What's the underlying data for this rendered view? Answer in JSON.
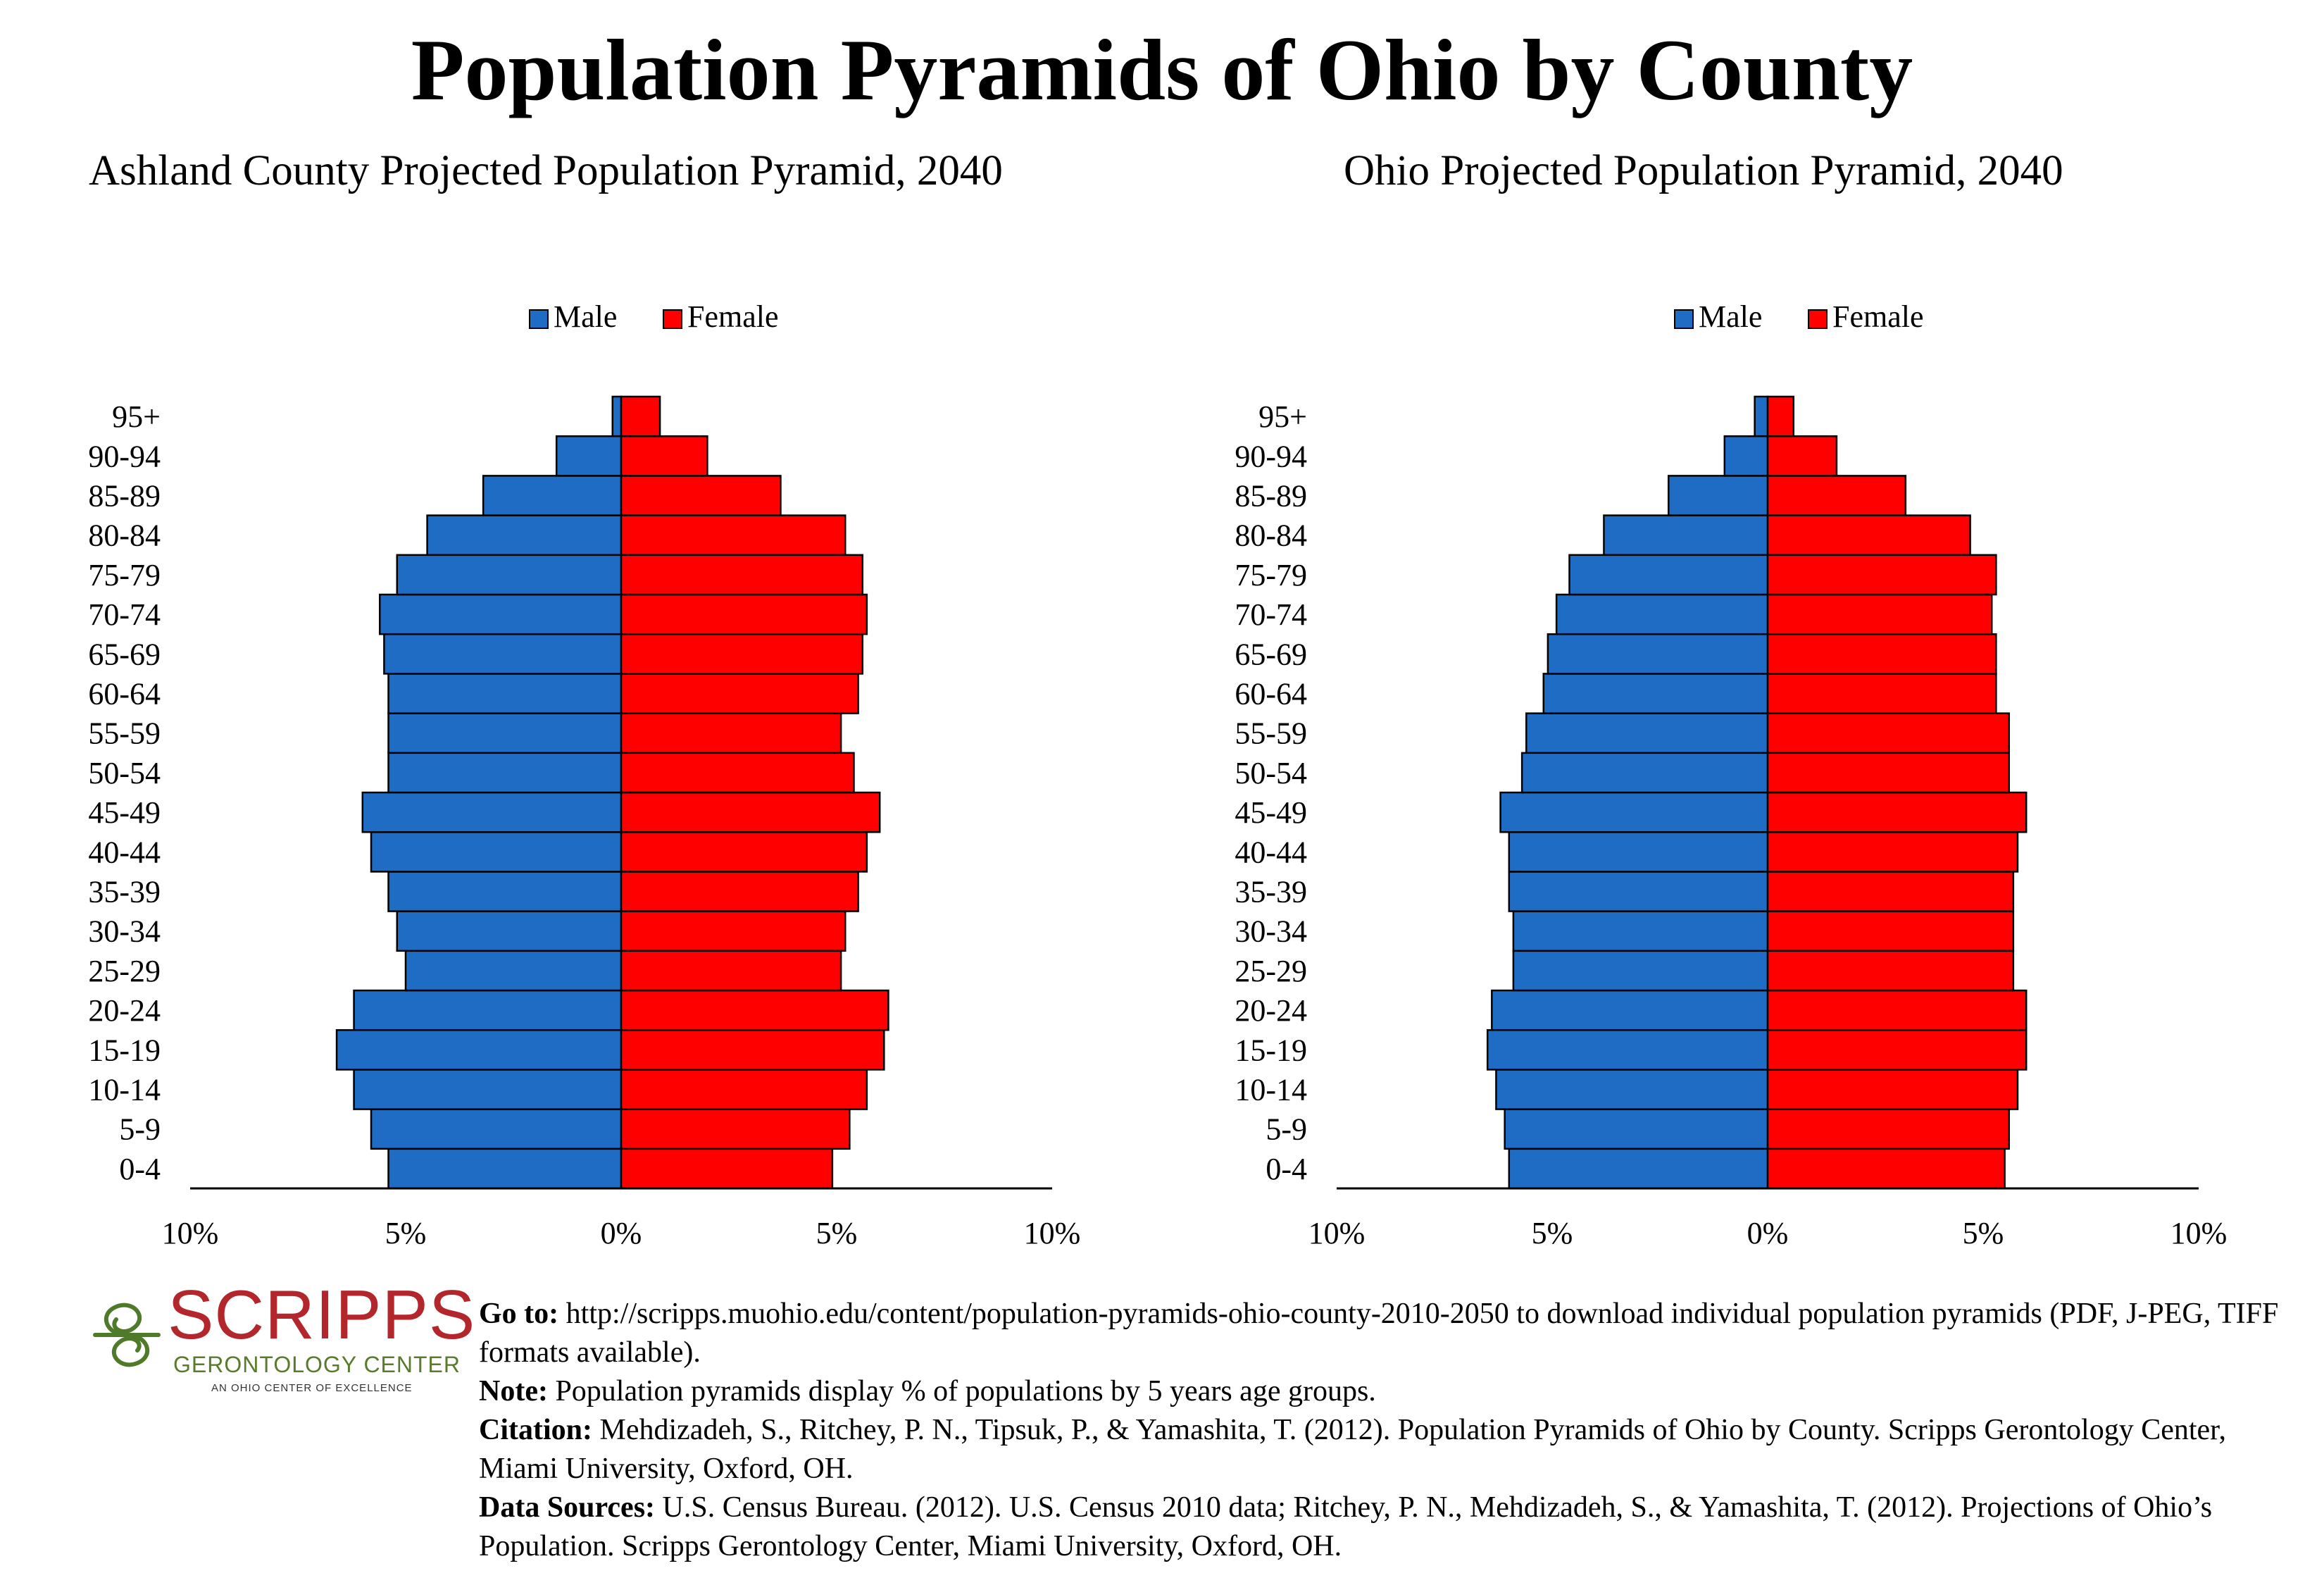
{
  "page": {
    "title": "Population Pyramids of Ohio by County"
  },
  "colors": {
    "male": "#1f6cc4",
    "female": "#ff0000",
    "axis": "#000000"
  },
  "chart_data": [
    {
      "type": "bar",
      "title": "Ashland County Projected Population Pyramid, 2040",
      "orientation": "horizontal-pyramid",
      "legend": [
        "Male",
        "Female"
      ],
      "legend_position": "top",
      "categories": [
        "0-4",
        "5-9",
        "10-14",
        "15-19",
        "20-24",
        "25-29",
        "30-34",
        "35-39",
        "40-44",
        "45-49",
        "50-54",
        "55-59",
        "60-64",
        "65-69",
        "70-74",
        "75-79",
        "80-84",
        "85-89",
        "90-94",
        "95+"
      ],
      "series": [
        {
          "name": "Male",
          "values": [
            5.4,
            5.8,
            6.2,
            6.6,
            6.2,
            5.0,
            5.2,
            5.4,
            5.8,
            6.0,
            5.4,
            5.4,
            5.4,
            5.5,
            5.6,
            5.2,
            4.5,
            3.2,
            1.5,
            0.2
          ]
        },
        {
          "name": "Female",
          "values": [
            4.9,
            5.3,
            5.7,
            6.1,
            6.2,
            5.1,
            5.2,
            5.5,
            5.7,
            6.0,
            5.4,
            5.1,
            5.5,
            5.6,
            5.7,
            5.6,
            5.2,
            3.7,
            2.0,
            0.9
          ]
        }
      ],
      "xlim": [
        -10,
        10
      ],
      "xticks": [
        "10%",
        "5%",
        "0%",
        "5%",
        "10%"
      ],
      "grid": false
    },
    {
      "type": "bar",
      "title": "Ohio Projected Population Pyramid, 2040",
      "orientation": "horizontal-pyramid",
      "legend": [
        "Male",
        "Female"
      ],
      "legend_position": "top",
      "categories": [
        "0-4",
        "5-9",
        "10-14",
        "15-19",
        "20-24",
        "25-29",
        "30-34",
        "35-39",
        "40-44",
        "45-49",
        "50-54",
        "55-59",
        "60-64",
        "65-69",
        "70-74",
        "75-79",
        "80-84",
        "85-89",
        "90-94",
        "95+"
      ],
      "series": [
        {
          "name": "Male",
          "values": [
            6.0,
            6.1,
            6.3,
            6.5,
            6.4,
            5.9,
            5.9,
            6.0,
            6.0,
            6.2,
            5.7,
            5.6,
            5.2,
            5.1,
            4.9,
            4.6,
            3.8,
            2.3,
            1.0,
            0.3
          ]
        },
        {
          "name": "Female",
          "values": [
            5.5,
            5.6,
            5.8,
            6.0,
            6.0,
            5.7,
            5.7,
            5.7,
            5.8,
            6.0,
            5.6,
            5.6,
            5.3,
            5.3,
            5.2,
            5.3,
            4.7,
            3.2,
            1.6,
            0.6
          ]
        }
      ],
      "xlim": [
        -10,
        10
      ],
      "xticks": [
        "10%",
        "5%",
        "0%",
        "5%",
        "10%"
      ],
      "grid": false
    }
  ],
  "logo": {
    "name": "SCRIPPS",
    "subtitle": "GERONTOLOGY CENTER",
    "tagline": "AN OHIO CENTER OF EXCELLENCE"
  },
  "notes": {
    "goto_label": "Go to:",
    "goto_text": " http://scripps.muohio.edu/content/population-pyramids-ohio-county-2010-2050 to download individual population pyramids (PDF, J-PEG, TIFF formats available).",
    "note_label": "Note:",
    "note_text": " Population pyramids display % of populations by 5 years age groups.",
    "citation_label": "Citation:",
    "citation_text": " Mehdizadeh, S., Ritchey, P. N., Tipsuk, P., & Yamashita, T. (2012). Population Pyramids of Ohio by County. Scripps Gerontology Center, Miami University, Oxford, OH.",
    "sources_label": "Data Sources:",
    "sources_text": " U.S. Census Bureau. (2012). U.S. Census 2010 data; Ritchey, P. N., Mehdizadeh, S., & Yamashita, T. (2012). Projections of Ohio’s Population. Scripps Gerontology Center, Miami University, Oxford, OH."
  }
}
